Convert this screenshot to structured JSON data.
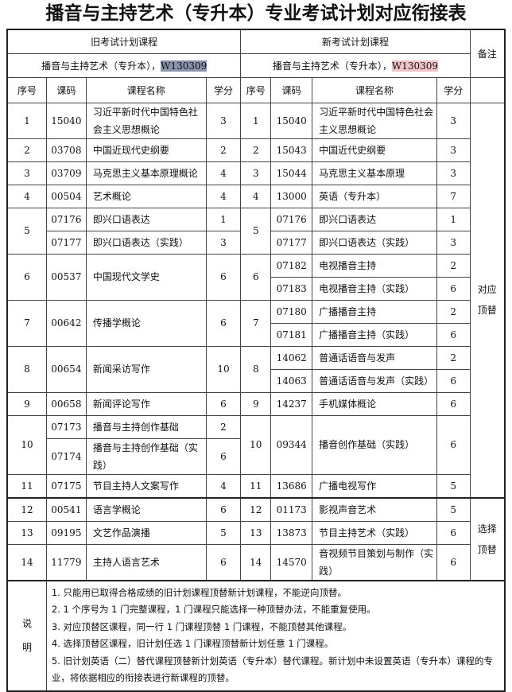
{
  "title": "播音与主持艺术（专升本）专业考试计划对应衔接表",
  "header": {
    "old_plan": "旧考试计划课程",
    "new_plan": "新考试计划课程",
    "remark": "备注",
    "major_old": "播音与主持艺术（专升本），",
    "code_old": "W130309",
    "major_new": "播音与主持艺术（专升本），",
    "code_new": "W130309",
    "columns": [
      "序号",
      "课码",
      "课程名称",
      "学分"
    ]
  },
  "highlight_colors": {
    "old": "#8b95b0",
    "new": "#f2c3c6"
  },
  "remarks": [
    "对应顶替",
    "选择顶替"
  ],
  "groups": [
    {
      "old": {
        "seq": "1",
        "rows": [
          {
            "code": "15040",
            "name": "习近平新时代中国特色社会主义思想概论",
            "credit": "3"
          }
        ]
      },
      "new": {
        "seq": "1",
        "rows": [
          {
            "code": "15040",
            "name": "习近平新时代中国特色社会主义思想概论",
            "credit": "3"
          }
        ]
      }
    },
    {
      "old": {
        "seq": "2",
        "rows": [
          {
            "code": "03708",
            "name": "中国近现代史纲要",
            "credit": "2"
          }
        ]
      },
      "new": {
        "seq": "2",
        "rows": [
          {
            "code": "15043",
            "name": "中国近代史纲要",
            "credit": "3"
          }
        ]
      }
    },
    {
      "old": {
        "seq": "3",
        "rows": [
          {
            "code": "03709",
            "name": "马克思主义基本原理概论",
            "credit": "4"
          }
        ]
      },
      "new": {
        "seq": "3",
        "rows": [
          {
            "code": "15044",
            "name": "马克思主义基本原理",
            "credit": "3"
          }
        ]
      }
    },
    {
      "old": {
        "seq": "4",
        "rows": [
          {
            "code": "00504",
            "name": "艺术概论",
            "credit": "4"
          }
        ]
      },
      "new": {
        "seq": "4",
        "rows": [
          {
            "code": "13000",
            "name": "英语（专升本）",
            "credit": "7"
          }
        ]
      }
    },
    {
      "old": {
        "seq": "5",
        "rows": [
          {
            "code": "07176",
            "name": "即兴口语表达",
            "credit": "1"
          },
          {
            "code": "07177",
            "name": "即兴口语表达（实践）",
            "credit": "3"
          }
        ]
      },
      "new": {
        "seq": "5",
        "rows": [
          {
            "code": "07176",
            "name": "即兴口语表达",
            "credit": "1"
          },
          {
            "code": "07177",
            "name": "即兴口语表达（实践）",
            "credit": "3"
          }
        ]
      }
    },
    {
      "old": {
        "seq": "6",
        "rows": [
          {
            "code": "00537",
            "name": "中国现代文学史",
            "credit": "6"
          }
        ]
      },
      "new": {
        "seq": "6",
        "rows": [
          {
            "code": "07182",
            "name": "电视播音主持",
            "credit": "2"
          },
          {
            "code": "07183",
            "name": "电视播音主持（实践）",
            "credit": "6"
          }
        ]
      }
    },
    {
      "old": {
        "seq": "7",
        "rows": [
          {
            "code": "00642",
            "name": "传播学概论",
            "credit": "6"
          }
        ]
      },
      "new": {
        "seq": "7",
        "rows": [
          {
            "code": "07180",
            "name": "广播播音主持",
            "credit": "2"
          },
          {
            "code": "07181",
            "name": "广播播音主持（实践）",
            "credit": "6"
          }
        ]
      }
    },
    {
      "old": {
        "seq": "8",
        "rows": [
          {
            "code": "00654",
            "name": "新闻采访写作",
            "credit": "10"
          }
        ]
      },
      "new": {
        "seq": "8",
        "rows": [
          {
            "code": "14062",
            "name": "普通话语音与发声",
            "credit": "2"
          },
          {
            "code": "14063",
            "name": "普通话语音与发声（实践）",
            "credit": "6"
          }
        ]
      }
    },
    {
      "old": {
        "seq": "9",
        "rows": [
          {
            "code": "00658",
            "name": "新闻评论写作",
            "credit": "6"
          }
        ]
      },
      "new": {
        "seq": "9",
        "rows": [
          {
            "code": "14237",
            "name": "手机媒体概论",
            "credit": "6"
          }
        ]
      }
    },
    {
      "old": {
        "seq": "10",
        "rows": [
          {
            "code": "07173",
            "name": "播音与主持创作基础",
            "credit": "2"
          },
          {
            "code": "07174",
            "name": "播音与主持创作基础（实践）",
            "credit": "6"
          }
        ]
      },
      "new": {
        "seq": "10",
        "rows": [
          {
            "code": "09344",
            "name": "播音创作基础（实践）",
            "credit": "6"
          }
        ]
      }
    },
    {
      "old": {
        "seq": "11",
        "rows": [
          {
            "code": "07175",
            "name": "节目主持人文案写作",
            "credit": "4"
          }
        ]
      },
      "new": {
        "seq": "11",
        "rows": [
          {
            "code": "13686",
            "name": "广播电视写作",
            "credit": "5"
          }
        ]
      }
    },
    {
      "old": {
        "seq": "12",
        "rows": [
          {
            "code": "00541",
            "name": "语言学概论",
            "credit": "6"
          }
        ]
      },
      "new": {
        "seq": "12",
        "rows": [
          {
            "code": "01173",
            "name": "影视声音艺术",
            "credit": "5"
          }
        ]
      }
    },
    {
      "old": {
        "seq": "13",
        "rows": [
          {
            "code": "09195",
            "name": "文艺作品演播",
            "credit": "5"
          }
        ]
      },
      "new": {
        "seq": "13",
        "rows": [
          {
            "code": "13873",
            "name": "节目主持艺术（实践）",
            "credit": "6"
          }
        ]
      }
    },
    {
      "old": {
        "seq": "14",
        "rows": [
          {
            "code": "11779",
            "name": "主持人语言艺术",
            "credit": "6"
          }
        ]
      },
      "new": {
        "seq": "14",
        "rows": [
          {
            "code": "14570",
            "name": "音视频节目策划与制作（实践）",
            "credit": "6"
          }
        ]
      }
    }
  ],
  "notes": {
    "label": "说明",
    "items": [
      "1. 只能用已取得合格成绩的旧计划课程顶替新计划课程，不能逆向顶替。",
      "2. 1 个序号为 1 门完整课程，1 门课程只能选择一种顶替办法，不能重复使用。",
      "3. 对应顶替区课程，同一行 1 门课程顶替 1 门课程，不能顶替其他课程。",
      "4. 选择顶替区课程，旧计划任选 1 门课程顶替新计划任意 1 门课程。",
      "5. 旧计划英语（二）替代课程顶替新计划英语（专升本）替代课程。新计划中未设置英语（专升本）课程的专业，将依据相应的衔接表进行新课程的顶替。"
    ]
  }
}
